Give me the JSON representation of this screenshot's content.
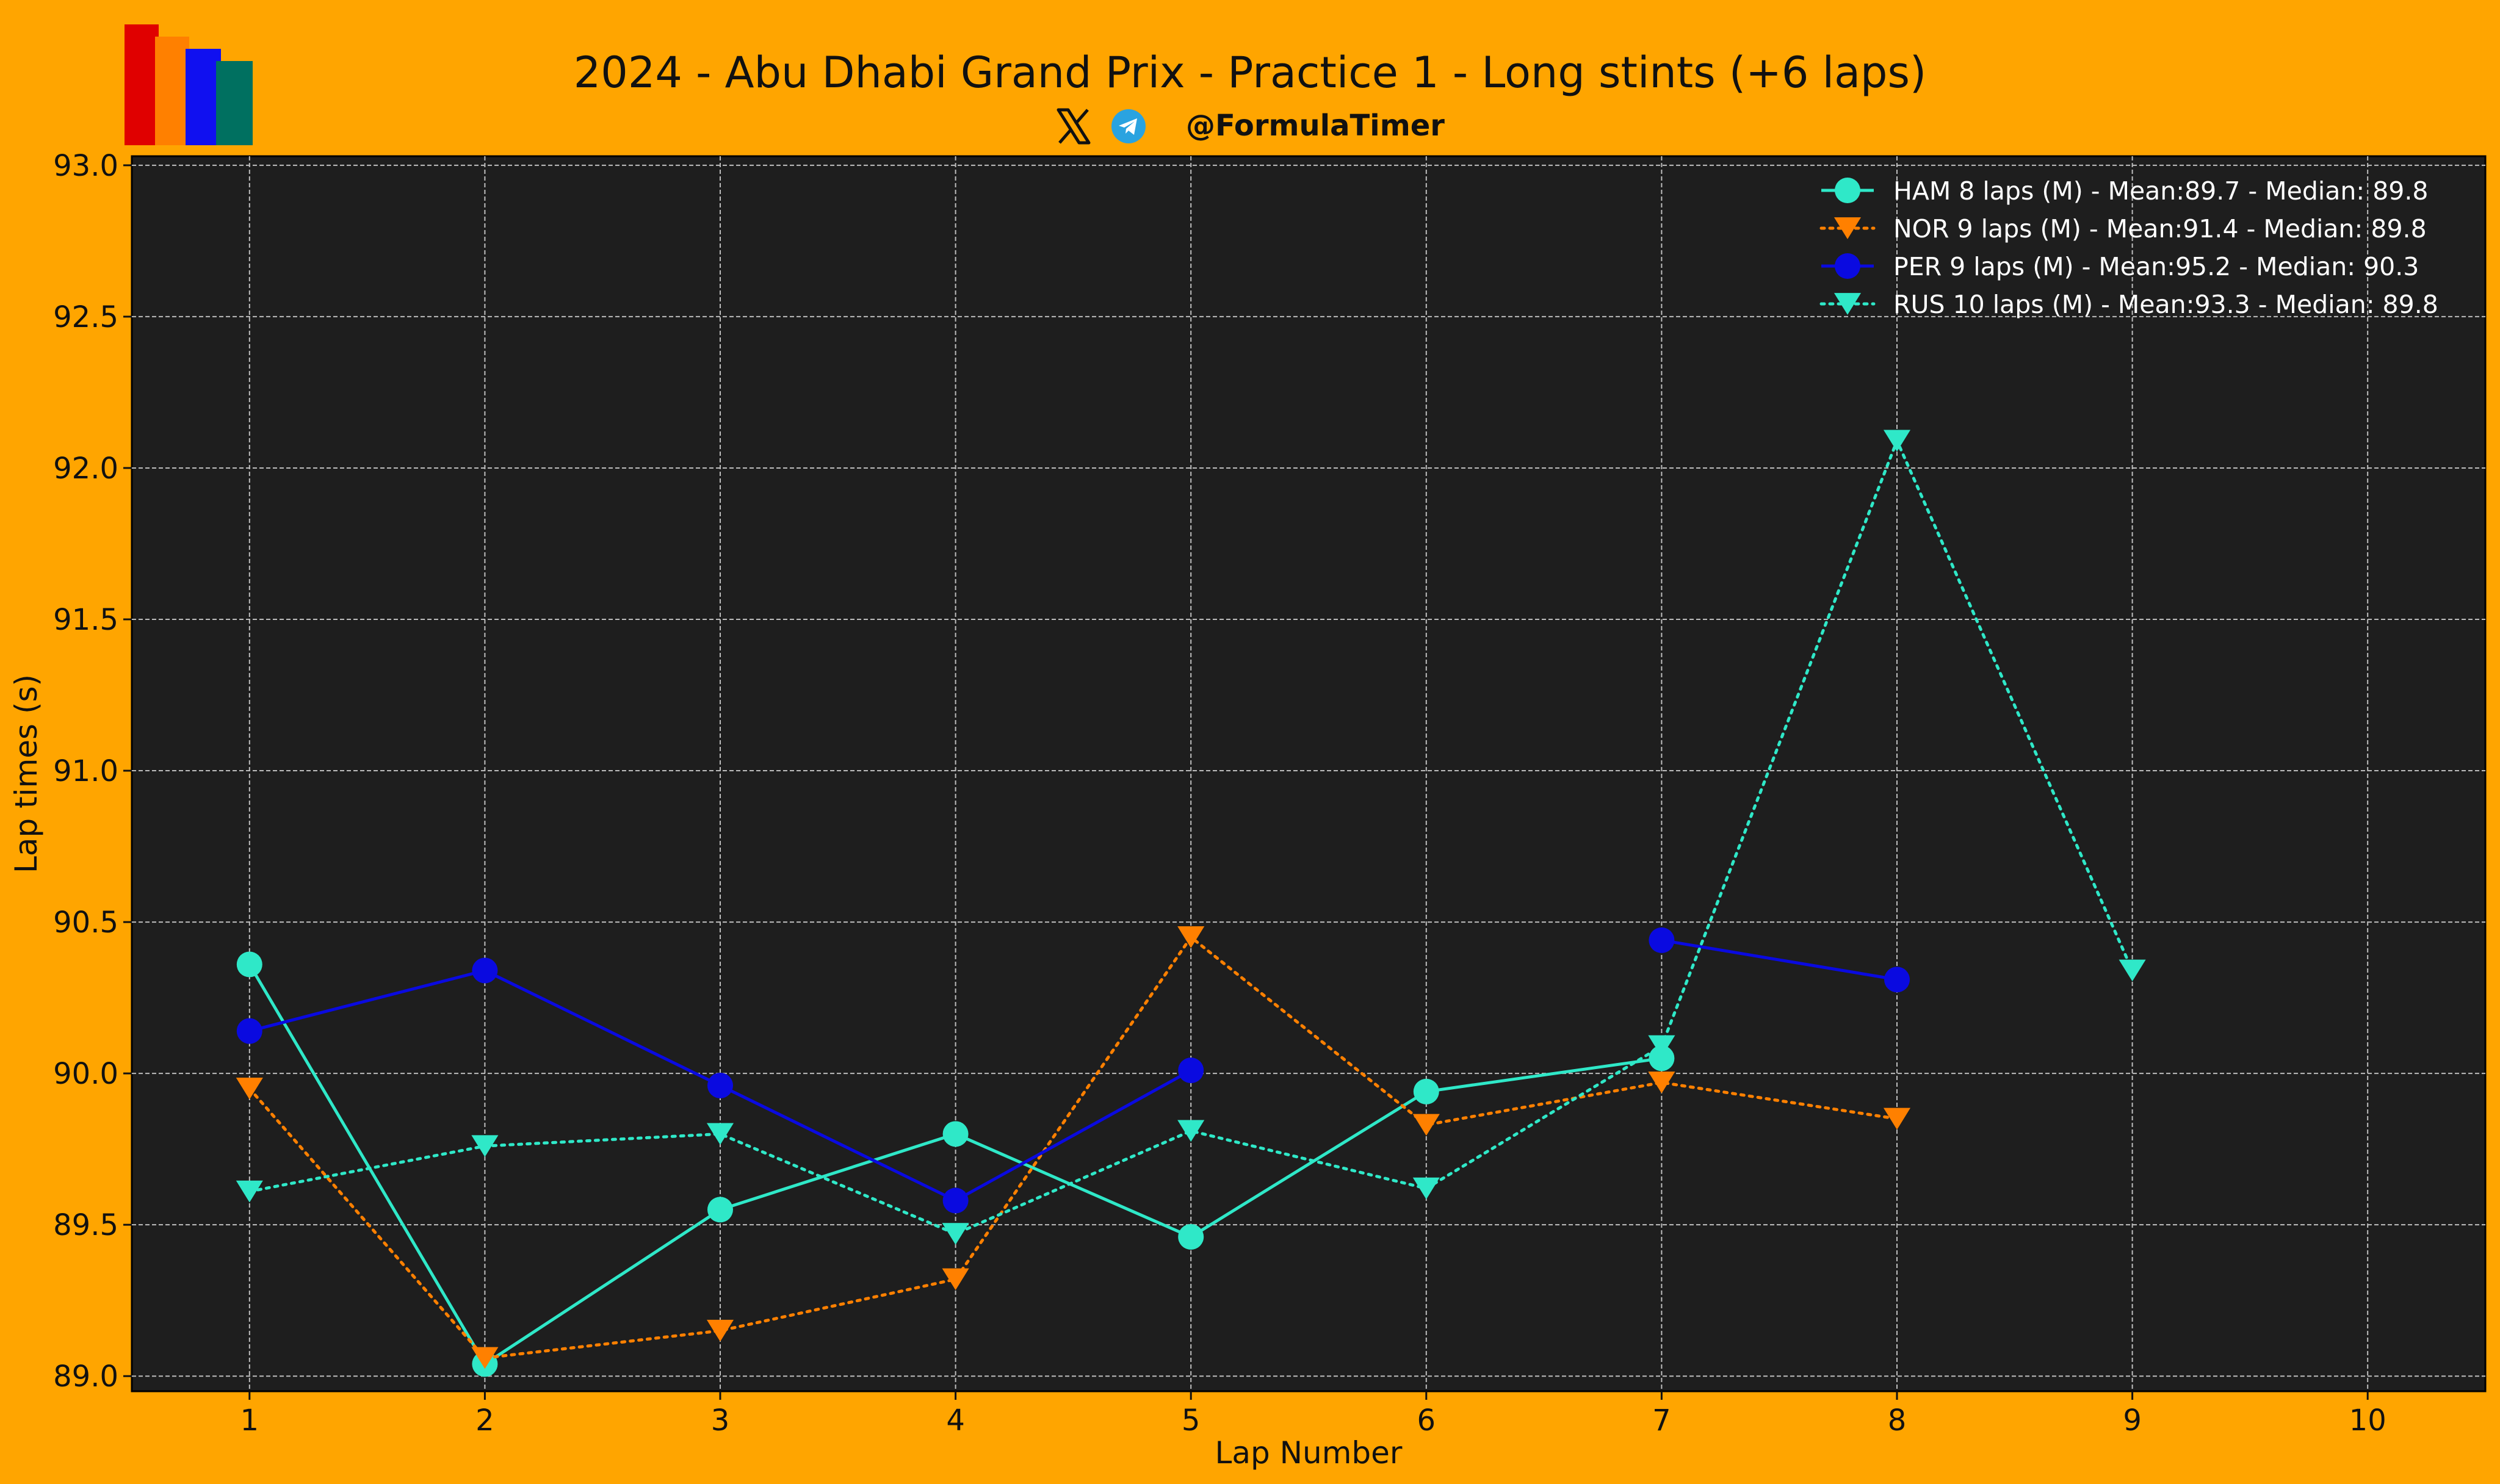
{
  "title": "2024 - Abu Dhabi Grand Prix - Practice 1 - Long stints (+6 laps)",
  "social": {
    "handle": "@FormulaTimer",
    "icons": [
      "x-icon",
      "telegram-icon"
    ]
  },
  "logo": {
    "bar_colors": [
      "#E00000",
      "#FF8000",
      "#1010F0",
      "#007060"
    ]
  },
  "chart_data": {
    "type": "line",
    "xlabel": "Lap Number",
    "ylabel": "Lap times (s)",
    "xlim": [
      0.5,
      10.5
    ],
    "ylim": [
      88.95,
      93.03
    ],
    "xticks": [
      1,
      2,
      3,
      4,
      5,
      6,
      7,
      8,
      9,
      10
    ],
    "yticks": [
      89.0,
      89.5,
      90.0,
      90.5,
      91.0,
      91.5,
      92.0,
      92.5,
      93.0
    ],
    "ytick_labels": [
      "89.0",
      "89.5",
      "90.0",
      "90.5",
      "91.0",
      "91.5",
      "92.0",
      "92.5",
      "93.0"
    ],
    "grid": true,
    "legend_position": "top-right",
    "background": "#1E1E1E",
    "series": [
      {
        "name": "HAM 8 laps (M) - Mean:89.7 - Median: 89.8",
        "color": "#2FE8C8",
        "line": "solid",
        "marker": "circle",
        "x": [
          1,
          2,
          3,
          4,
          5,
          6,
          7
        ],
        "y": [
          90.36,
          89.04,
          89.55,
          89.8,
          89.46,
          89.94,
          90.05
        ]
      },
      {
        "name": "NOR 9 laps (M) - Mean:91.4 - Median: 89.8",
        "color": "#FF8000",
        "line": "dotted",
        "marker": "triangle-down",
        "x": [
          1,
          2,
          3,
          4,
          5,
          6,
          7,
          8
        ],
        "y": [
          89.95,
          89.06,
          89.15,
          89.32,
          90.45,
          89.83,
          89.97,
          89.85
        ]
      },
      {
        "name": "PER 9 laps (M) - Mean:95.2 - Median: 90.3",
        "color": "#0A0AE0",
        "line": "solid",
        "marker": "circle",
        "segments": [
          {
            "x": [
              1,
              2,
              3,
              4,
              5
            ],
            "y": [
              90.14,
              90.34,
              89.96,
              89.58,
              90.01
            ]
          },
          {
            "x": [
              7,
              8
            ],
            "y": [
              90.44,
              90.31
            ]
          }
        ]
      },
      {
        "name": "RUS 10 laps (M) - Mean:93.3 - Median: 89.8",
        "color": "#2FE8C8",
        "line": "dotted",
        "marker": "triangle-down",
        "x": [
          1,
          2,
          3,
          4,
          5,
          6,
          7,
          8,
          9
        ],
        "y": [
          89.61,
          89.76,
          89.8,
          89.47,
          89.81,
          89.62,
          90.09,
          92.09,
          90.34
        ]
      }
    ]
  }
}
